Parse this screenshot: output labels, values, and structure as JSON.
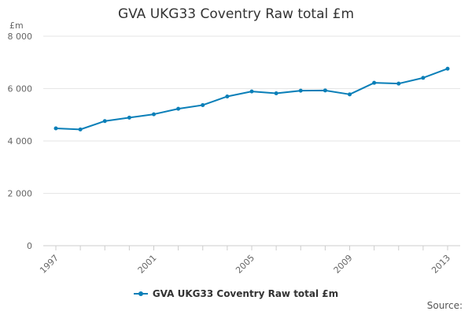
{
  "page": {
    "source_label": "Source:"
  },
  "colors": {
    "series": "#0A7FB8",
    "grid": "#e6e6e6",
    "axis": "#cccccc",
    "text": "#333333",
    "muted": "#666666"
  },
  "chart_data": {
    "type": "line",
    "title": "GVA UKG33 Coventry Raw total £m",
    "xlabel": "",
    "ylabel": "£m",
    "x": [
      1997,
      1998,
      1999,
      2000,
      2001,
      2002,
      2003,
      2004,
      2005,
      2006,
      2007,
      2008,
      2009,
      2010,
      2011,
      2012,
      2013
    ],
    "xticks": [
      "1997",
      "2001",
      "2005",
      "2009",
      "2013"
    ],
    "yticks": [
      0,
      2000,
      4000,
      6000,
      8000
    ],
    "ytick_labels": [
      "0",
      "2 000",
      "4 000",
      "6 000",
      "8 000"
    ],
    "ylim": [
      0,
      8000
    ],
    "xlim": [
      1997,
      2013
    ],
    "grid": true,
    "legend": "bottom",
    "series": [
      {
        "name": "GVA UKG33 Coventry Raw total £m",
        "values": [
          4480,
          4440,
          4760,
          4890,
          5020,
          5230,
          5370,
          5700,
          5890,
          5820,
          5920,
          5930,
          5780,
          6220,
          6190,
          6410,
          6760
        ]
      }
    ]
  }
}
